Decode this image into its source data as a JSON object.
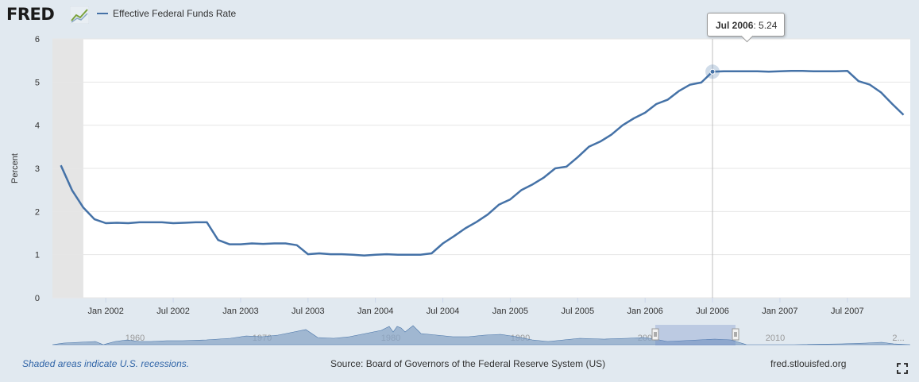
{
  "header": {
    "logo_text": "FRED",
    "legend_label": "Effective Federal Funds Rate",
    "series_color": "#4572a7"
  },
  "tooltip": {
    "date": "Jul 2006",
    "value": "5.24"
  },
  "footer": {
    "recession_note": "Shaded areas indicate U.S. recessions.",
    "source": "Source: Board of Governors of the Federal Reserve System (US)",
    "site": "fred.stlouisfed.org",
    "fullscreen_icon": "fullscreen-icon"
  },
  "navigator": {
    "labels": [
      "1960",
      "1970",
      "1980",
      "1990",
      "2000",
      "2010",
      "2..."
    ]
  },
  "chart_data": {
    "type": "line",
    "title": "",
    "xlabel": "",
    "ylabel": "Percent",
    "ylim": [
      0,
      6
    ],
    "yticks": [
      "0",
      "1",
      "2",
      "3",
      "4",
      "5",
      "6"
    ],
    "xticks": [
      "Jan 2002",
      "Jul 2002",
      "Jan 2003",
      "Jul 2003",
      "Jan 2004",
      "Jul 2004",
      "Jan 2005",
      "Jul 2005",
      "Jan 2006",
      "Jul 2006",
      "Jan 2007",
      "Jul 2007"
    ],
    "grid": true,
    "legend_position": "top-left",
    "recession": {
      "start": "2001-09",
      "end": "2001-11"
    },
    "highlight": {
      "x": "2006-07",
      "y": 5.24
    },
    "series": [
      {
        "name": "Effective Federal Funds Rate",
        "color": "#4572a7",
        "x": [
          "2001-09",
          "2001-10",
          "2001-11",
          "2001-12",
          "2002-01",
          "2002-02",
          "2002-03",
          "2002-04",
          "2002-05",
          "2002-06",
          "2002-07",
          "2002-08",
          "2002-09",
          "2002-10",
          "2002-11",
          "2002-12",
          "2003-01",
          "2003-02",
          "2003-03",
          "2003-04",
          "2003-05",
          "2003-06",
          "2003-07",
          "2003-08",
          "2003-09",
          "2003-10",
          "2003-11",
          "2003-12",
          "2004-01",
          "2004-02",
          "2004-03",
          "2004-04",
          "2004-05",
          "2004-06",
          "2004-07",
          "2004-08",
          "2004-09",
          "2004-10",
          "2004-11",
          "2004-12",
          "2005-01",
          "2005-02",
          "2005-03",
          "2005-04",
          "2005-05",
          "2005-06",
          "2005-07",
          "2005-08",
          "2005-09",
          "2005-10",
          "2005-11",
          "2005-12",
          "2006-01",
          "2006-02",
          "2006-03",
          "2006-04",
          "2006-05",
          "2006-06",
          "2006-07",
          "2006-08",
          "2006-09",
          "2006-10",
          "2006-11",
          "2006-12",
          "2007-01",
          "2007-02",
          "2007-03",
          "2007-04",
          "2007-05",
          "2007-06",
          "2007-07",
          "2007-08",
          "2007-09",
          "2007-10",
          "2007-11",
          "2007-12"
        ],
        "y": [
          3.07,
          2.49,
          2.09,
          1.82,
          1.73,
          1.74,
          1.73,
          1.75,
          1.75,
          1.75,
          1.73,
          1.74,
          1.75,
          1.75,
          1.34,
          1.24,
          1.24,
          1.26,
          1.25,
          1.26,
          1.26,
          1.22,
          1.01,
          1.03,
          1.01,
          1.01,
          1.0,
          0.98,
          1.0,
          1.01,
          1.0,
          1.0,
          1.0,
          1.03,
          1.26,
          1.43,
          1.61,
          1.76,
          1.93,
          2.16,
          2.28,
          2.5,
          2.63,
          2.79,
          3.0,
          3.04,
          3.26,
          3.5,
          3.62,
          3.78,
          4.0,
          4.16,
          4.29,
          4.49,
          4.59,
          4.79,
          4.94,
          4.99,
          5.24,
          5.25,
          5.25,
          5.25,
          5.25,
          5.24,
          5.25,
          5.26,
          5.26,
          5.25,
          5.25,
          5.25,
          5.26,
          5.02,
          4.94,
          4.76,
          4.49,
          4.24
        ]
      }
    ]
  }
}
